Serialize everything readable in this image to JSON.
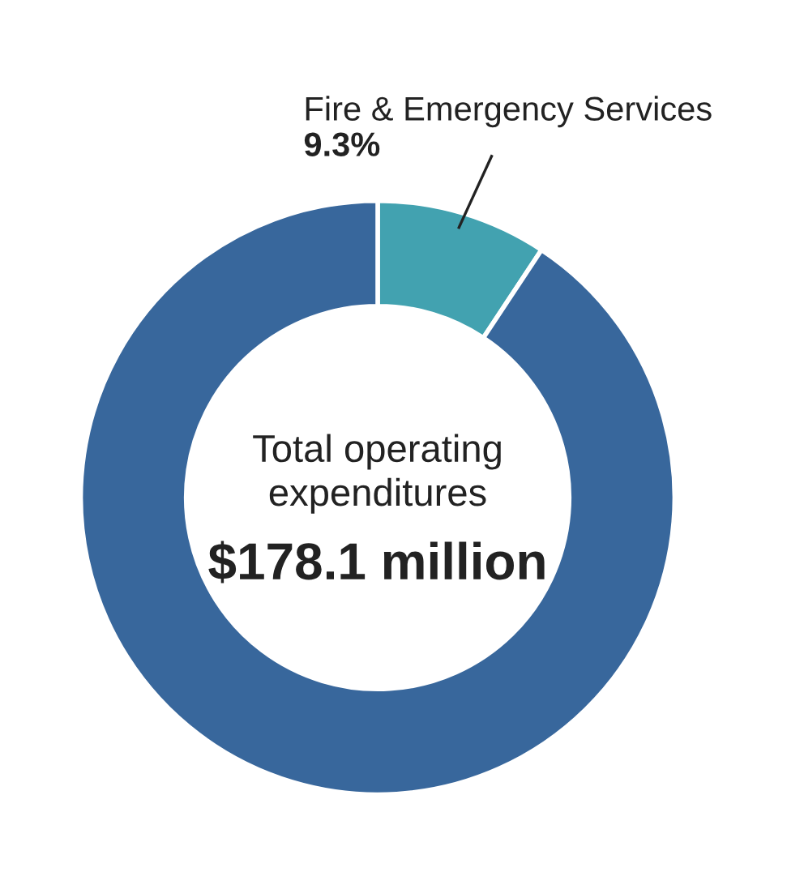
{
  "chart_data": {
    "type": "donut",
    "categories": [
      "Fire & Emergency Services",
      null
    ],
    "values": [
      9.3,
      90.7
    ],
    "colors": [
      "#42a2b0",
      "#38679c"
    ],
    "value_labels": [
      "9.3%",
      null
    ],
    "annotations": [
      "Total operating expenditures",
      "$178.1 million"
    ]
  }
}
